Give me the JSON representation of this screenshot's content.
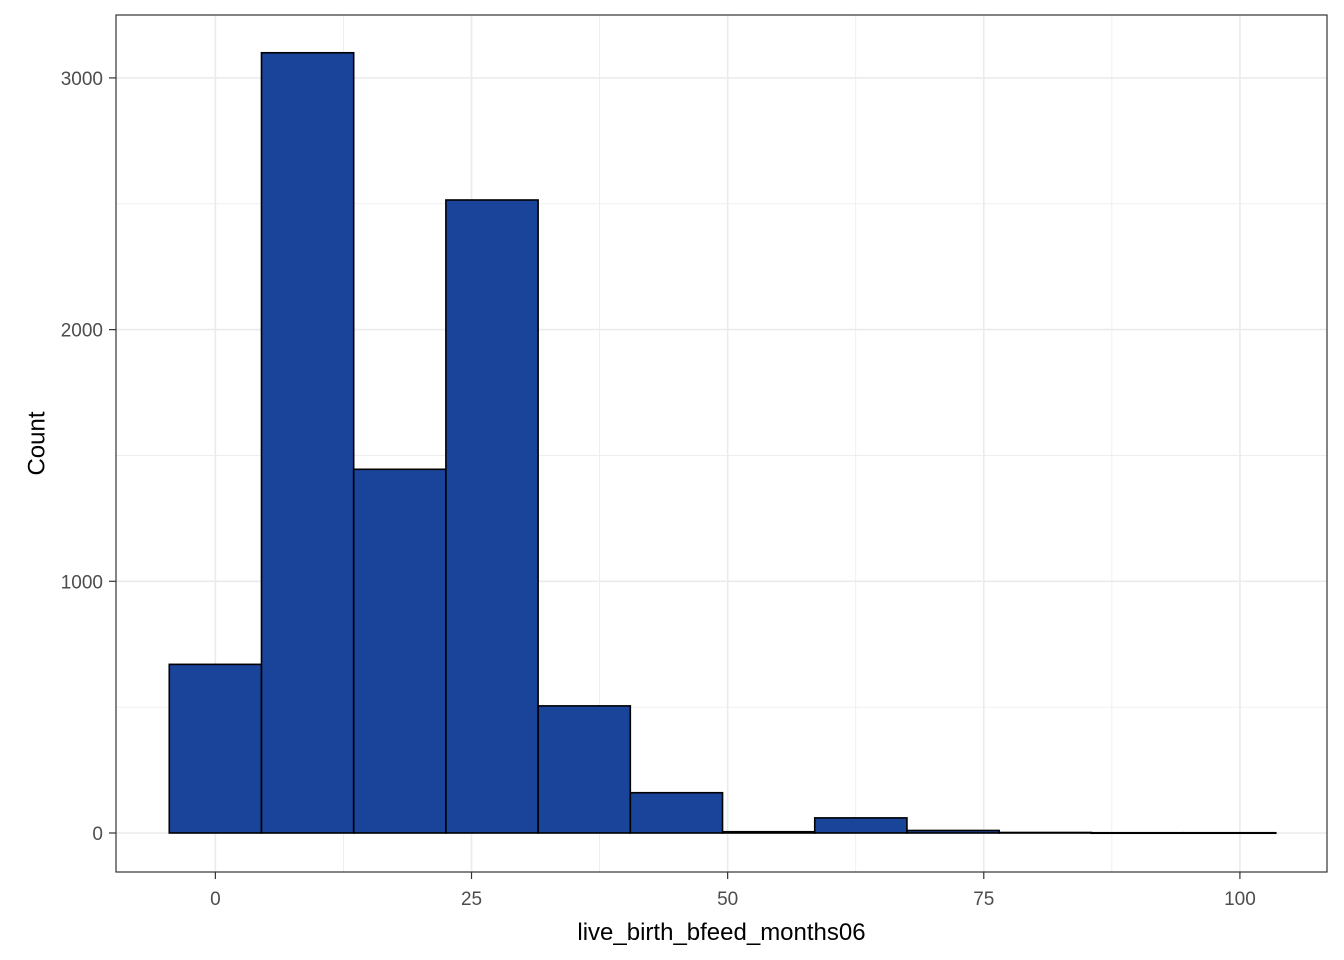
{
  "chart_data": {
    "type": "bar",
    "subtype": "histogram",
    "title": "",
    "xlabel": "live_birth_bfeed_months06",
    "ylabel": "Count",
    "xlim": [
      -9.7,
      108.5
    ],
    "ylim": [
      -155,
      3250
    ],
    "x_ticks": [
      0,
      25,
      50,
      75,
      100
    ],
    "x_tick_labels": [
      "0",
      "25",
      "50",
      "75",
      "100"
    ],
    "y_ticks": [
      0,
      1000,
      2000,
      3000
    ],
    "y_tick_labels": [
      "0",
      "1000",
      "2000",
      "3000"
    ],
    "x_minor_ticks": [
      12.5,
      37.5,
      62.5,
      87.5
    ],
    "y_minor_ticks": [
      500,
      1500,
      2500
    ],
    "grid": true,
    "legend": "none",
    "bins": [
      {
        "x0": -4.5,
        "x1": 4.5,
        "count": 670
      },
      {
        "x0": 4.5,
        "x1": 13.5,
        "count": 3100
      },
      {
        "x0": 13.5,
        "x1": 22.5,
        "count": 1445
      },
      {
        "x0": 22.5,
        "x1": 31.5,
        "count": 2515
      },
      {
        "x0": 31.5,
        "x1": 40.5,
        "count": 505
      },
      {
        "x0": 40.5,
        "x1": 49.5,
        "count": 160
      },
      {
        "x0": 49.5,
        "x1": 58.5,
        "count": 5
      },
      {
        "x0": 58.5,
        "x1": 67.5,
        "count": 60
      },
      {
        "x0": 67.5,
        "x1": 76.5,
        "count": 10
      },
      {
        "x0": 76.5,
        "x1": 85.5,
        "count": 2
      },
      {
        "x0": 85.5,
        "x1": 94.5,
        "count": 1
      },
      {
        "x0": 94.5,
        "x1": 103.5,
        "count": 1
      }
    ],
    "colors": {
      "fill": "#1a4499",
      "outline": "#000000",
      "grid": "#ebebeb",
      "panel_border": "#333333",
      "tick_text": "#4d4d4d",
      "title_text": "#000000"
    }
  }
}
